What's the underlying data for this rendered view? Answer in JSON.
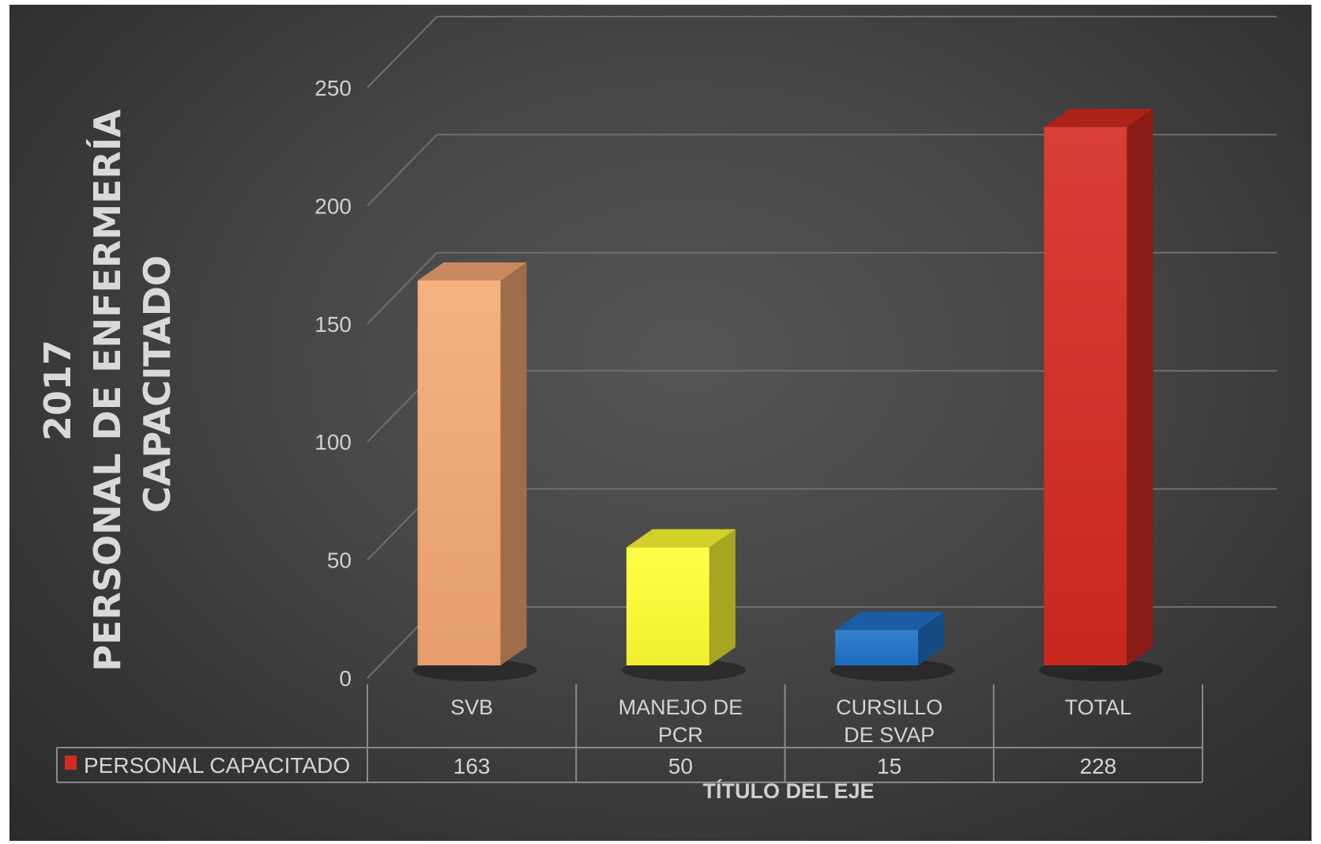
{
  "chart_data": {
    "type": "bar",
    "title": "",
    "ylabel": [
      "2017",
      "PERSONAL DE ENFERMERÍA",
      "CAPACITADO"
    ],
    "xlabel": "TÍTULO DEL EJE",
    "categories": [
      [
        "SVB"
      ],
      [
        "MANEJO DE",
        "PCR"
      ],
      [
        "CURSILLO",
        "DE SVAP"
      ],
      [
        "TOTAL"
      ]
    ],
    "series": [
      {
        "name": "PERSONAL CAPACITADO",
        "values": [
          163,
          50,
          15,
          228
        ],
        "colors": [
          "#f4a872",
          "#ffff33",
          "#1e73c8",
          "#d42a20"
        ],
        "display_values": [
          "163",
          "50",
          "15",
          "228"
        ]
      }
    ],
    "ylim": [
      0,
      250
    ],
    "yticks": [
      0,
      50,
      100,
      150,
      200,
      250
    ],
    "grid": true,
    "legend": "data-table",
    "background": "#3a3a3a"
  }
}
